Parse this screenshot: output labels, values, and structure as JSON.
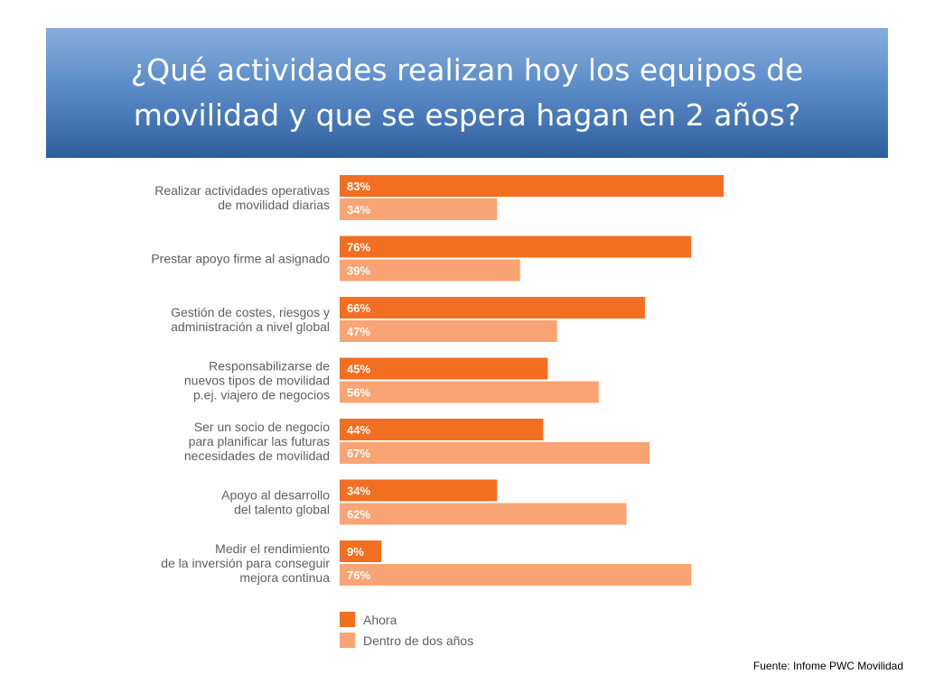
{
  "title_lines": [
    "¿Qué actividades realizan hoy los equipos de",
    "movilidad y que se espera hagan en 2 años?"
  ],
  "source": "Fuente: Infome PWC Movilidad",
  "chart_data": {
    "type": "bar",
    "orientation": "horizontal",
    "value_suffix": "%",
    "categories": [
      [
        "Realizar actividades operativas",
        "de movilidad diarias"
      ],
      [
        "Prestar apoyo firme al asignado"
      ],
      [
        "Gestión de costes, riesgos y",
        "administración a nivel global"
      ],
      [
        "Responsabilizarse de",
        "nuevos tipos de movilidad",
        "p.ej. viajero de negocios"
      ],
      [
        "Ser un socio de negocio",
        "para planificar las futuras",
        "necesidades de movilidad"
      ],
      [
        "Apoyo al desarrollo",
        "del talento global"
      ],
      [
        "Medir el rendimiento",
        "de la inversión para conseguir",
        "mejora continua"
      ]
    ],
    "series": [
      {
        "name": "Ahora",
        "color": "#f26f21",
        "values": [
          83,
          76,
          66,
          45,
          44,
          34,
          9
        ]
      },
      {
        "name": "Dentro de dos años",
        "color": "#f9a474",
        "values": [
          34,
          39,
          47,
          56,
          67,
          62,
          76
        ]
      }
    ],
    "legend_position": "bottom-left",
    "grid": false
  }
}
